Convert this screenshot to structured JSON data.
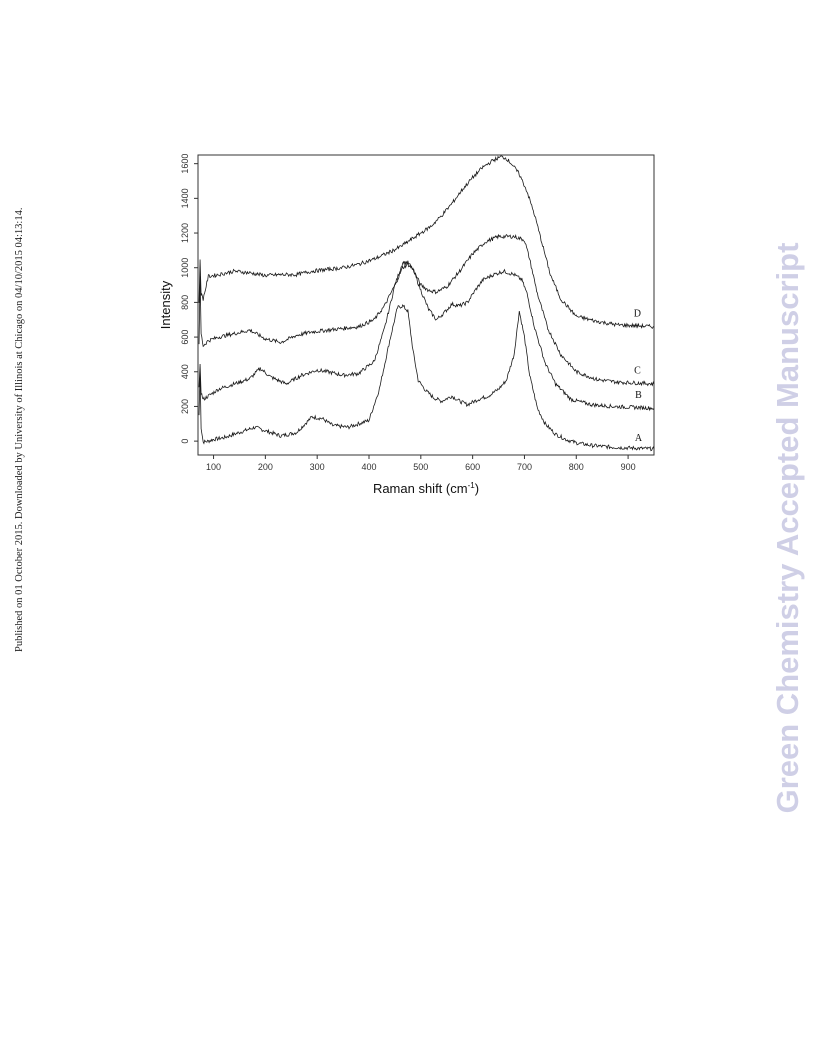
{
  "side_note": "Published on 01 October 2015. Downloaded by University of Illinois at Chicago on 04/10/2015 04:13:14.",
  "watermark": "Green Chemistry Accepted Manuscript",
  "chart_data": {
    "type": "line",
    "xlabel": "Raman shift (cm",
    "xlabel_sup": "-1",
    "xlabel_close": ")",
    "ylabel": "Intensity",
    "xlim": [
      70,
      950
    ],
    "ylim": [
      -80,
      1650
    ],
    "x_ticks": [
      100,
      200,
      300,
      400,
      500,
      600,
      700,
      800,
      900
    ],
    "y_ticks": [
      0,
      200,
      400,
      600,
      800,
      1000,
      1200,
      1400,
      1600
    ],
    "grid": false,
    "legend": "none",
    "color": "#1a1a1a",
    "series": [
      {
        "name": "A",
        "x": [
          72,
          74,
          76,
          80,
          90,
          100,
          120,
          150,
          180,
          200,
          230,
          260,
          290,
          310,
          330,
          360,
          400,
          420,
          440,
          455,
          465,
          475,
          485,
          495,
          510,
          525,
          540,
          560,
          575,
          590,
          610,
          630,
          650,
          665,
          680,
          690,
          700,
          710,
          725,
          740,
          760,
          780,
          800,
          830,
          870,
          910,
          950
        ],
        "y": [
          150,
          400,
          80,
          -5,
          0,
          10,
          20,
          50,
          80,
          60,
          30,
          50,
          140,
          130,
          90,
          80,
          120,
          300,
          580,
          770,
          780,
          750,
          520,
          350,
          290,
          250,
          230,
          260,
          230,
          210,
          240,
          260,
          300,
          350,
          500,
          750,
          600,
          380,
          190,
          100,
          40,
          10,
          -10,
          -25,
          -35,
          -40,
          -45
        ]
      },
      {
        "name": "B",
        "x": [
          72,
          74,
          76,
          80,
          90,
          110,
          140,
          170,
          190,
          210,
          240,
          270,
          300,
          320,
          350,
          380,
          410,
          430,
          450,
          465,
          475,
          485,
          500,
          515,
          530,
          545,
          560,
          575,
          590,
          605,
          620,
          640,
          660,
          680,
          695,
          705,
          720,
          740,
          760,
          790,
          830,
          870,
          910,
          950
        ],
        "y": [
          300,
          450,
          280,
          240,
          260,
          300,
          330,
          360,
          420,
          370,
          330,
          380,
          410,
          400,
          380,
          390,
          460,
          650,
          900,
          1030,
          1030,
          990,
          870,
          760,
          700,
          740,
          790,
          780,
          800,
          870,
          930,
          960,
          980,
          960,
          930,
          850,
          650,
          450,
          330,
          240,
          210,
          200,
          195,
          190
        ]
      },
      {
        "name": "C",
        "x": [
          72,
          74,
          76,
          80,
          90,
          110,
          140,
          170,
          200,
          230,
          260,
          290,
          320,
          350,
          380,
          410,
          430,
          450,
          465,
          475,
          485,
          500,
          515,
          530,
          550,
          575,
          600,
          625,
          650,
          680,
          700,
          710,
          725,
          745,
          770,
          800,
          840,
          880,
          920,
          950
        ],
        "y": [
          550,
          950,
          620,
          550,
          580,
          600,
          620,
          640,
          590,
          570,
          610,
          630,
          640,
          650,
          660,
          700,
          780,
          900,
          1000,
          1020,
          990,
          900,
          870,
          860,
          890,
          980,
          1080,
          1150,
          1180,
          1180,
          1160,
          1050,
          850,
          650,
          500,
          400,
          355,
          340,
          335,
          330
        ]
      },
      {
        "name": "D",
        "x": [
          72,
          74,
          76,
          80,
          90,
          110,
          140,
          170,
          200,
          230,
          260,
          290,
          320,
          350,
          380,
          410,
          440,
          460,
          480,
          500,
          520,
          540,
          560,
          580,
          600,
          620,
          640,
          655,
          665,
          675,
          690,
          705,
          720,
          735,
          750,
          770,
          800,
          840,
          880,
          920,
          950
        ],
        "y": [
          800,
          1050,
          850,
          820,
          950,
          960,
          980,
          970,
          955,
          960,
          960,
          980,
          990,
          1000,
          1020,
          1050,
          1090,
          1120,
          1160,
          1200,
          1240,
          1300,
          1370,
          1450,
          1520,
          1580,
          1620,
          1640,
          1630,
          1600,
          1540,
          1440,
          1300,
          1130,
          960,
          820,
          720,
          690,
          670,
          665,
          660
        ]
      }
    ],
    "label_positions": [
      {
        "name": "A",
        "x": 920,
        "y": 0
      },
      {
        "name": "B",
        "x": 920,
        "y": 250
      },
      {
        "name": "C",
        "x": 918,
        "y": 390
      },
      {
        "name": "D",
        "x": 918,
        "y": 720
      }
    ]
  }
}
